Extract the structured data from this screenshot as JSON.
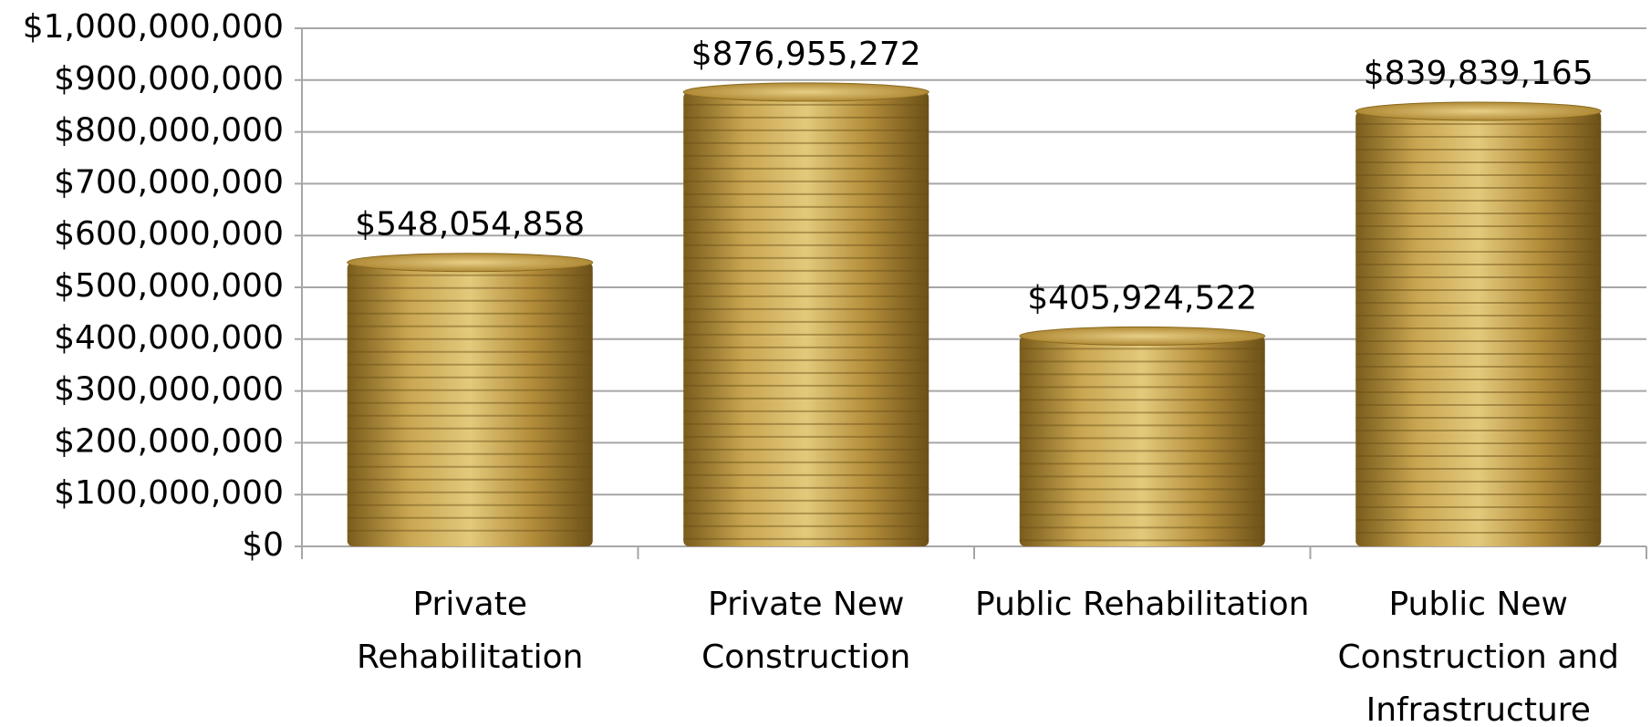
{
  "chart_data": {
    "type": "bar",
    "categories": [
      "Private Rehabilitation",
      "Private New Construction",
      "Public Rehabilitation",
      "Public New Construction and Infrastructure"
    ],
    "values": [
      548054858,
      876955272,
      405924522,
      839839165
    ],
    "value_labels": [
      "$548,054,858",
      "$876,955,272",
      "$405,924,522",
      "$839,839,165"
    ],
    "color": "#b8953a",
    "ylim": [
      0,
      1000000000
    ],
    "yticks": [
      {
        "value": 0,
        "label": "$0"
      },
      {
        "value": 100000000,
        "label": "$100,000,000"
      },
      {
        "value": 200000000,
        "label": "$200,000,000"
      },
      {
        "value": 300000000,
        "label": "$300,000,000"
      },
      {
        "value": 400000000,
        "label": "$400,000,000"
      },
      {
        "value": 500000000,
        "label": "$500,000,000"
      },
      {
        "value": 600000000,
        "label": "$600,000,000"
      },
      {
        "value": 700000000,
        "label": "$700,000,000"
      },
      {
        "value": 800000000,
        "label": "$800,000,000"
      },
      {
        "value": 900000000,
        "label": "$900,000,000"
      },
      {
        "value": 1000000000,
        "label": "$1,000,000,000"
      }
    ],
    "grid": true
  }
}
